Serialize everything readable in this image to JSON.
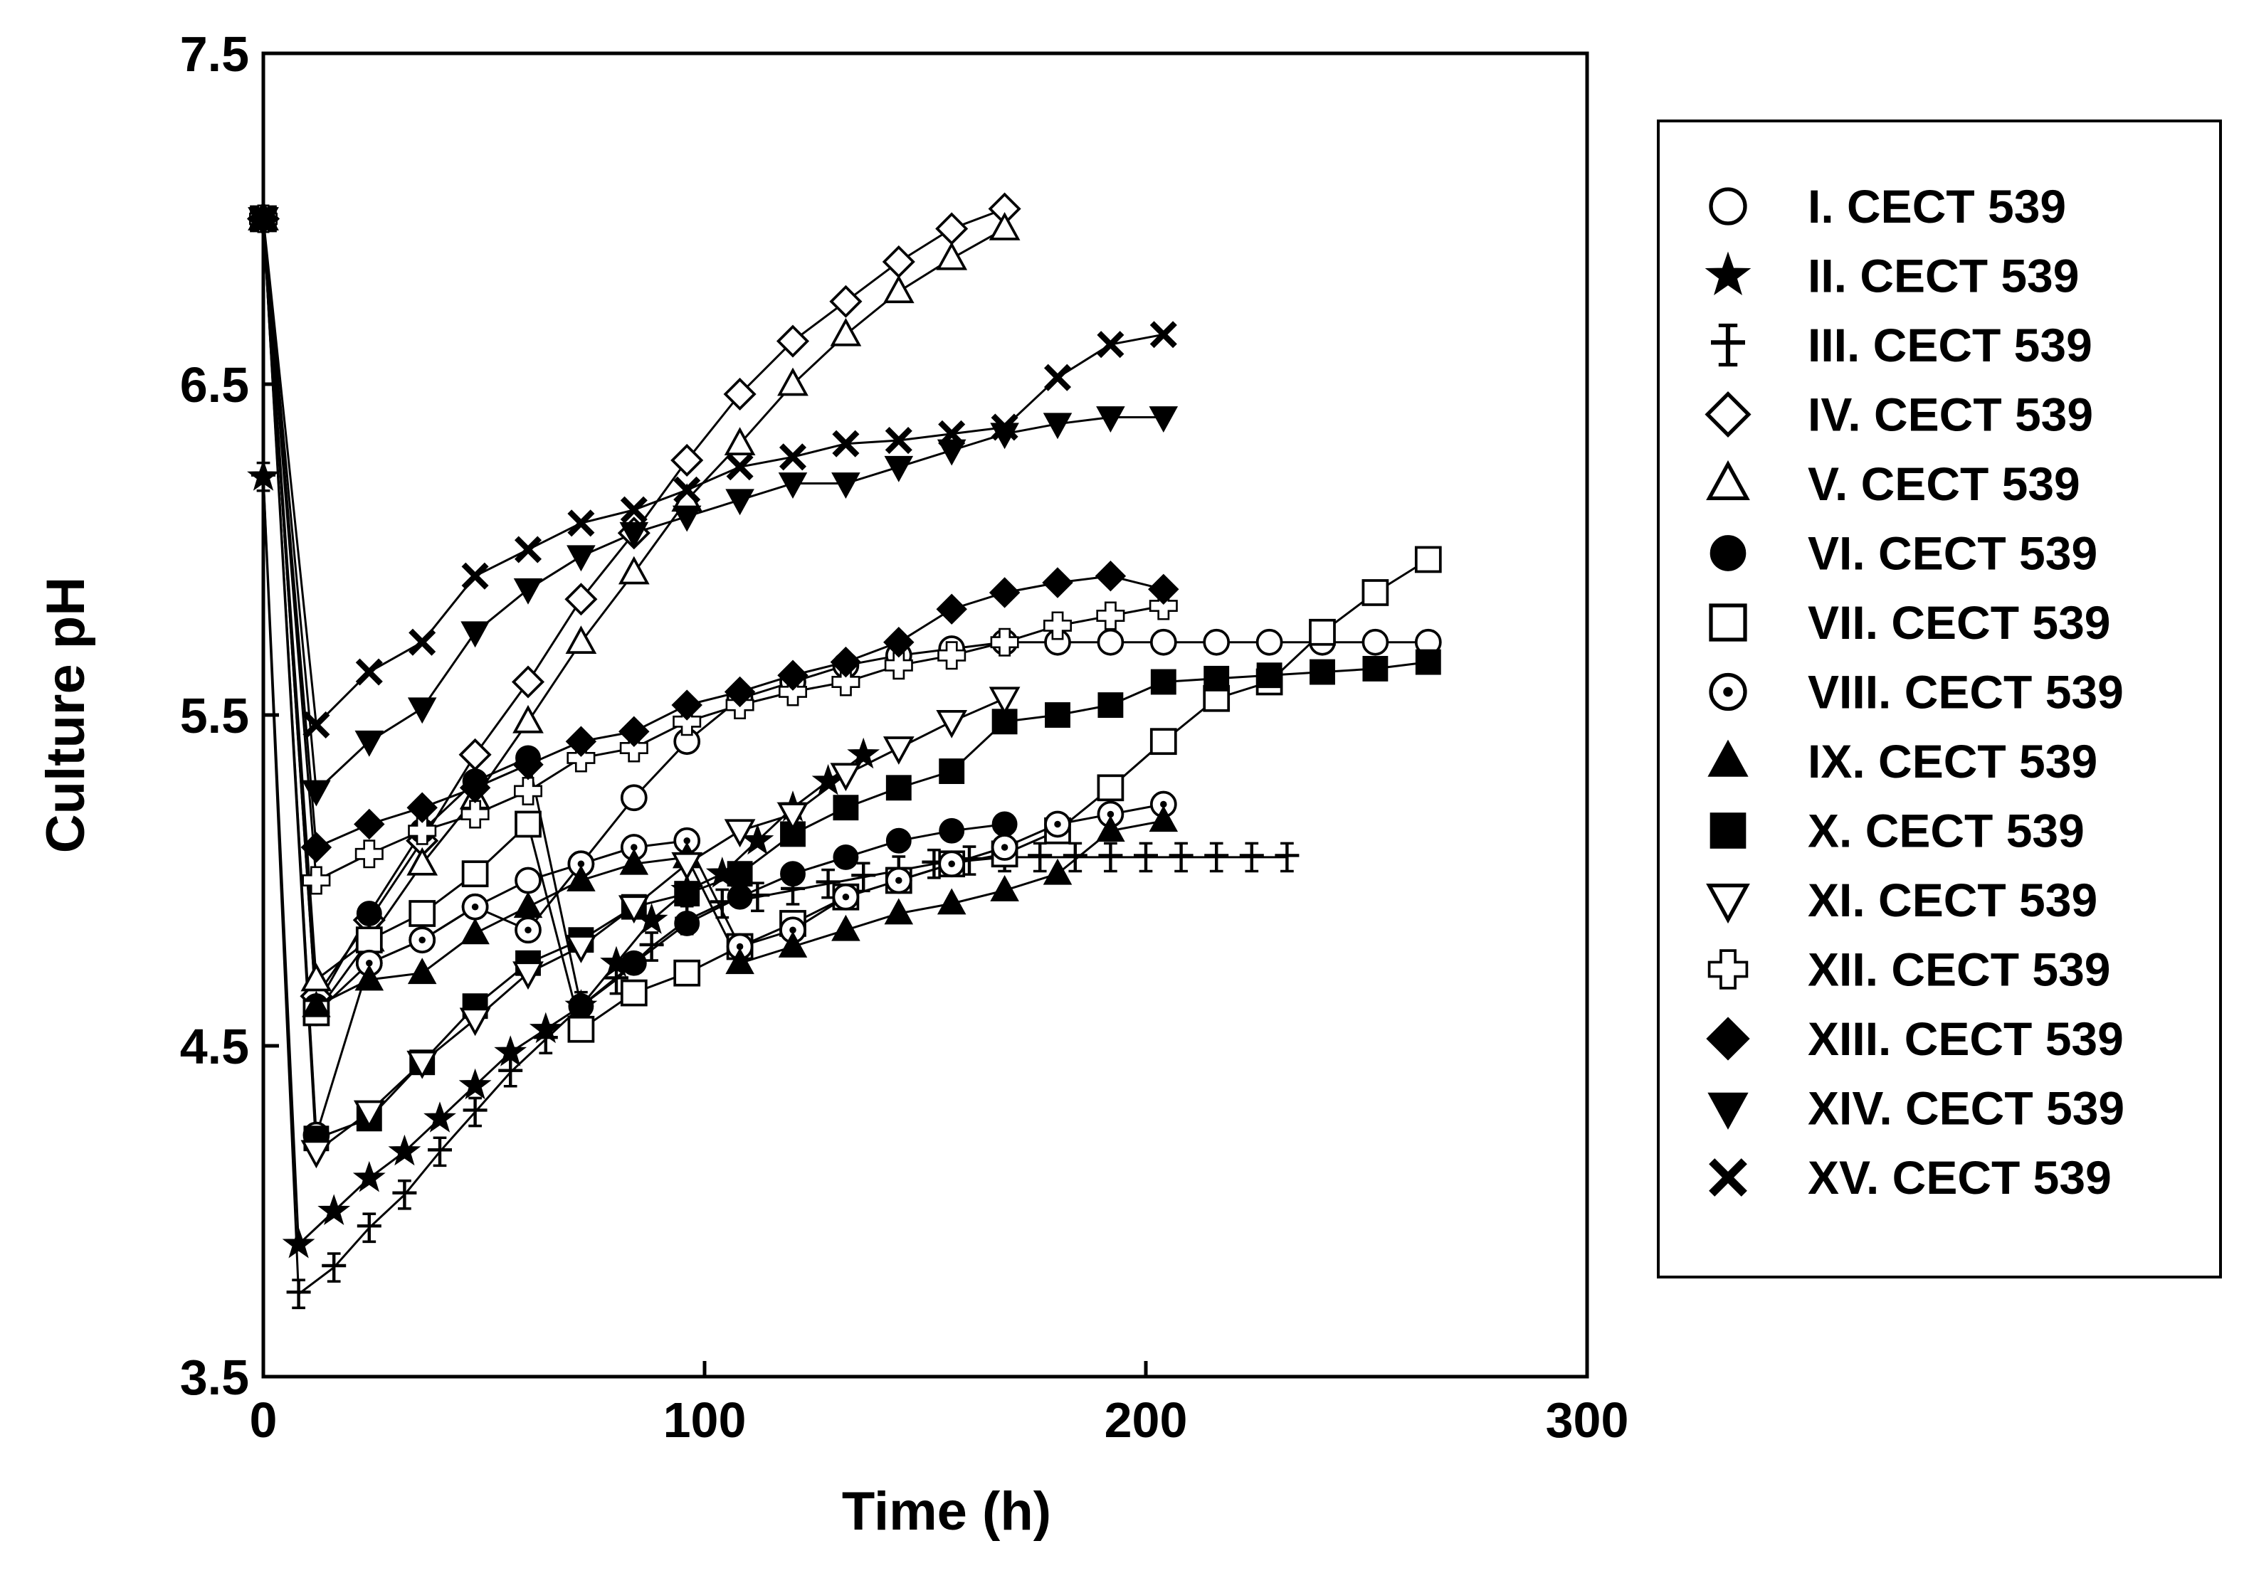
{
  "chart_data": {
    "type": "line",
    "title": "",
    "xlabel": "Time (h)",
    "ylabel": "Culture pH",
    "xlim": [
      0,
      300
    ],
    "ylim": [
      3.5,
      7.5
    ],
    "xticks": [
      0,
      100,
      200,
      300
    ],
    "yticks": [
      3.5,
      4.5,
      5.5,
      6.5,
      7.5
    ],
    "xtick_labels": [
      "0",
      "100",
      "200",
      "300"
    ],
    "ytick_labels": [
      "3.5",
      "4.5",
      "5.5",
      "6.5",
      "7.5"
    ],
    "grid": false,
    "legend_position": "right",
    "series": [
      {
        "name": "I. CECT 539",
        "marker": "circle-open",
        "x": [
          0,
          12,
          24,
          36,
          48,
          60,
          72,
          84,
          96,
          108,
          120,
          132,
          144,
          156,
          168,
          180,
          192,
          204,
          216,
          228,
          240,
          252,
          264
        ],
        "y": [
          7.0,
          4.6,
          4.75,
          4.82,
          4.92,
          5.0,
          5.05,
          5.25,
          5.42,
          5.55,
          5.6,
          5.65,
          5.68,
          5.7,
          5.72,
          5.72,
          5.72,
          5.72,
          5.72,
          5.72,
          5.72,
          5.72,
          5.72
        ]
      },
      {
        "name": "II. CECT 539",
        "marker": "star",
        "x": [
          0,
          8,
          16,
          24,
          32,
          40,
          48,
          56,
          64,
          72,
          80,
          88,
          96,
          104,
          112,
          120,
          128,
          136
        ],
        "y": [
          6.22,
          3.9,
          4.0,
          4.1,
          4.18,
          4.28,
          4.38,
          4.48,
          4.55,
          4.62,
          4.75,
          4.88,
          4.97,
          5.02,
          5.12,
          5.22,
          5.3,
          5.38
        ]
      },
      {
        "name": "III. CECT 539",
        "marker": "dagger",
        "x": [
          0,
          8,
          16,
          24,
          32,
          40,
          48,
          56,
          64,
          72,
          80,
          88,
          96,
          104,
          112,
          120,
          128,
          136,
          144,
          152,
          160,
          168,
          176,
          184,
          192,
          200,
          208,
          216,
          224,
          232
        ],
        "y": [
          6.22,
          3.75,
          3.83,
          3.95,
          4.05,
          4.18,
          4.3,
          4.42,
          4.52,
          4.62,
          4.7,
          4.8,
          4.88,
          4.93,
          4.95,
          4.97,
          4.99,
          5.01,
          5.03,
          5.05,
          5.06,
          5.07,
          5.07,
          5.07,
          5.07,
          5.07,
          5.07,
          5.07,
          5.07,
          5.07
        ]
      },
      {
        "name": "IV. CECT 539",
        "marker": "diamond-open",
        "x": [
          0,
          12,
          24,
          36,
          48,
          60,
          72,
          84,
          96,
          108,
          120,
          132,
          144,
          156,
          168
        ],
        "y": [
          7.0,
          4.65,
          4.88,
          5.12,
          5.38,
          5.6,
          5.85,
          6.05,
          6.27,
          6.47,
          6.63,
          6.75,
          6.87,
          6.97,
          7.03
        ]
      },
      {
        "name": "V. CECT 539",
        "marker": "triangle-up-open",
        "x": [
          0,
          12,
          24,
          36,
          48,
          60,
          72,
          84,
          96,
          108,
          120,
          132,
          144,
          156,
          168
        ],
        "y": [
          7.0,
          4.7,
          4.82,
          5.05,
          5.25,
          5.48,
          5.72,
          5.93,
          6.15,
          6.32,
          6.5,
          6.65,
          6.78,
          6.88,
          6.97
        ]
      },
      {
        "name": "VI. CECT 539",
        "marker": "circle-filled",
        "x": [
          0,
          12,
          24,
          36,
          48,
          60,
          72,
          84,
          96,
          108,
          120,
          132,
          144,
          156,
          168
        ],
        "y": [
          7.0,
          4.62,
          4.9,
          5.15,
          5.3,
          5.37,
          4.62,
          4.75,
          4.87,
          4.95,
          5.02,
          5.07,
          5.12,
          5.15,
          5.17
        ]
      },
      {
        "name": "VII. CECT 539",
        "marker": "square-open",
        "x": [
          0,
          12,
          24,
          36,
          48,
          60,
          72,
          84,
          96,
          108,
          120,
          132,
          144,
          156,
          168,
          180,
          192,
          204,
          216,
          228,
          240,
          252,
          264
        ],
        "y": [
          7.0,
          4.6,
          4.82,
          4.9,
          5.02,
          5.17,
          4.55,
          4.66,
          4.72,
          4.8,
          4.87,
          4.95,
          5.0,
          5.05,
          5.08,
          5.15,
          5.28,
          5.42,
          5.55,
          5.6,
          5.75,
          5.87,
          5.97
        ]
      },
      {
        "name": "VIII. CECT 539",
        "marker": "circle-dot",
        "x": [
          0,
          12,
          24,
          36,
          48,
          60,
          72,
          84,
          96,
          108,
          120,
          132,
          144,
          156,
          168,
          180,
          192,
          204
        ],
        "y": [
          7.0,
          4.23,
          4.75,
          4.82,
          4.92,
          4.85,
          5.05,
          5.1,
          5.12,
          4.8,
          4.85,
          4.95,
          5.0,
          5.05,
          5.1,
          5.17,
          5.2,
          5.23
        ]
      },
      {
        "name": "IX. CECT 539",
        "marker": "triangle-up-filled",
        "x": [
          0,
          12,
          24,
          36,
          48,
          60,
          72,
          84,
          96,
          108,
          120,
          132,
          144,
          156,
          168,
          180,
          192,
          204
        ],
        "y": [
          7.0,
          4.62,
          4.7,
          4.72,
          4.84,
          4.92,
          5.0,
          5.05,
          5.07,
          4.75,
          4.8,
          4.85,
          4.9,
          4.93,
          4.97,
          5.02,
          5.15,
          5.18
        ]
      },
      {
        "name": "X. CECT 539",
        "marker": "square-filled",
        "x": [
          0,
          12,
          24,
          36,
          48,
          60,
          72,
          84,
          96,
          108,
          120,
          132,
          144,
          156,
          168,
          180,
          192,
          204,
          216,
          228,
          240,
          252,
          264
        ],
        "y": [
          7.0,
          4.22,
          4.28,
          4.45,
          4.62,
          4.75,
          4.82,
          4.92,
          4.96,
          5.02,
          5.14,
          5.22,
          5.28,
          5.33,
          5.48,
          5.5,
          5.53,
          5.6,
          5.61,
          5.62,
          5.63,
          5.64,
          5.66
        ]
      },
      {
        "name": "XI. CECT 539",
        "marker": "triangle-down-open",
        "x": [
          0,
          12,
          24,
          36,
          48,
          60,
          72,
          84,
          96,
          108,
          120,
          132,
          144,
          156,
          168
        ],
        "y": [
          7.0,
          4.18,
          4.3,
          4.45,
          4.58,
          4.72,
          4.8,
          4.92,
          5.05,
          5.15,
          5.2,
          5.32,
          5.4,
          5.48,
          5.55
        ]
      },
      {
        "name": "XII. CECT 539",
        "marker": "plus-open",
        "x": [
          0,
          12,
          24,
          36,
          48,
          60,
          72,
          84,
          96,
          108,
          120,
          132,
          144,
          156,
          168,
          180,
          192,
          204
        ],
        "y": [
          7.0,
          5.0,
          5.08,
          5.15,
          5.2,
          5.27,
          5.37,
          5.4,
          5.48,
          5.53,
          5.57,
          5.6,
          5.65,
          5.68,
          5.72,
          5.77,
          5.8,
          5.83
        ]
      },
      {
        "name": "XIII. CECT 539",
        "marker": "diamond-filled",
        "x": [
          0,
          12,
          24,
          36,
          48,
          60,
          72,
          84,
          96,
          108,
          120,
          132,
          144,
          156,
          168,
          180,
          192,
          204
        ],
        "y": [
          7.0,
          5.1,
          5.17,
          5.22,
          5.28,
          5.35,
          5.42,
          5.45,
          5.53,
          5.57,
          5.62,
          5.66,
          5.72,
          5.82,
          5.87,
          5.9,
          5.92,
          5.88
        ]
      },
      {
        "name": "XIV. CECT 539",
        "marker": "triangle-down-filled",
        "x": [
          0,
          12,
          24,
          36,
          48,
          60,
          72,
          84,
          96,
          108,
          120,
          132,
          144,
          156,
          168,
          180,
          192,
          204
        ],
        "y": [
          7.0,
          5.27,
          5.42,
          5.52,
          5.75,
          5.88,
          5.98,
          6.05,
          6.1,
          6.15,
          6.2,
          6.2,
          6.25,
          6.3,
          6.35,
          6.38,
          6.4,
          6.4
        ]
      },
      {
        "name": "XV. CECT 539",
        "marker": "x-filled",
        "x": [
          0,
          12,
          24,
          36,
          48,
          60,
          72,
          84,
          96,
          108,
          120,
          132,
          144,
          156,
          168,
          180,
          192,
          204
        ],
        "y": [
          7.0,
          5.47,
          5.63,
          5.72,
          5.92,
          6.0,
          6.08,
          6.12,
          6.18,
          6.25,
          6.28,
          6.32,
          6.33,
          6.35,
          6.37,
          6.52,
          6.62,
          6.65
        ]
      }
    ]
  }
}
